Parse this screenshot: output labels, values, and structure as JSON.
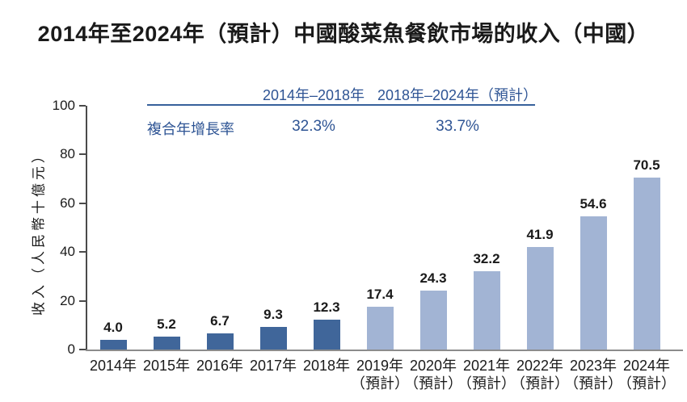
{
  "title": "2014年至2024年（預計）中國酸菜魚餐飲市場的收入（中國）",
  "colors": {
    "historical_bar": "#40669a",
    "forecast_bar": "#a2b4d4",
    "annotation_blue": "#2e5494",
    "annotation_rule": "#37619b",
    "y_axis": "#4a4a4a",
    "x_axis": "#8c8c8c",
    "text": "#1a1a1a"
  },
  "chart_data": {
    "type": "bar",
    "title": "2014年至2024年（預計）中國酸菜魚餐飲市場的收入（中國）",
    "xlabel": "",
    "ylabel": "收入（人民幣十億元）",
    "ylim": [
      0,
      100
    ],
    "yticks": [
      "0",
      "20",
      "40",
      "60",
      "80",
      "100"
    ],
    "grid": "off",
    "legend": "none",
    "categories": [
      "2014年",
      "2015年",
      "2016年",
      "2017年",
      "2018年",
      "2019年",
      "2020年",
      "2021年",
      "2022年",
      "2023年",
      "2024年"
    ],
    "sublabels": [
      "",
      "",
      "",
      "",
      "",
      "（預計）",
      "（預計）",
      "（預計）",
      "（預計）",
      "（預計）",
      "（預計）"
    ],
    "values": [
      4.0,
      5.2,
      6.7,
      9.3,
      12.3,
      17.4,
      24.3,
      32.2,
      41.9,
      54.6,
      70.5
    ],
    "value_labels": [
      "4.0",
      "5.2",
      "6.7",
      "9.3",
      "12.3",
      "17.4",
      "24.3",
      "32.2",
      "41.9",
      "54.6",
      "70.5"
    ],
    "segment_kinds": [
      "historical",
      "historical",
      "historical",
      "historical",
      "historical",
      "forecast",
      "forecast",
      "forecast",
      "forecast",
      "forecast",
      "forecast"
    ],
    "cagr": {
      "row_label": "複合年增長率",
      "columns": [
        {
          "period": "2014年–2018年",
          "value": "32.3%"
        },
        {
          "period": "2018年–2024年（預計）",
          "value": "33.7%"
        }
      ]
    }
  }
}
